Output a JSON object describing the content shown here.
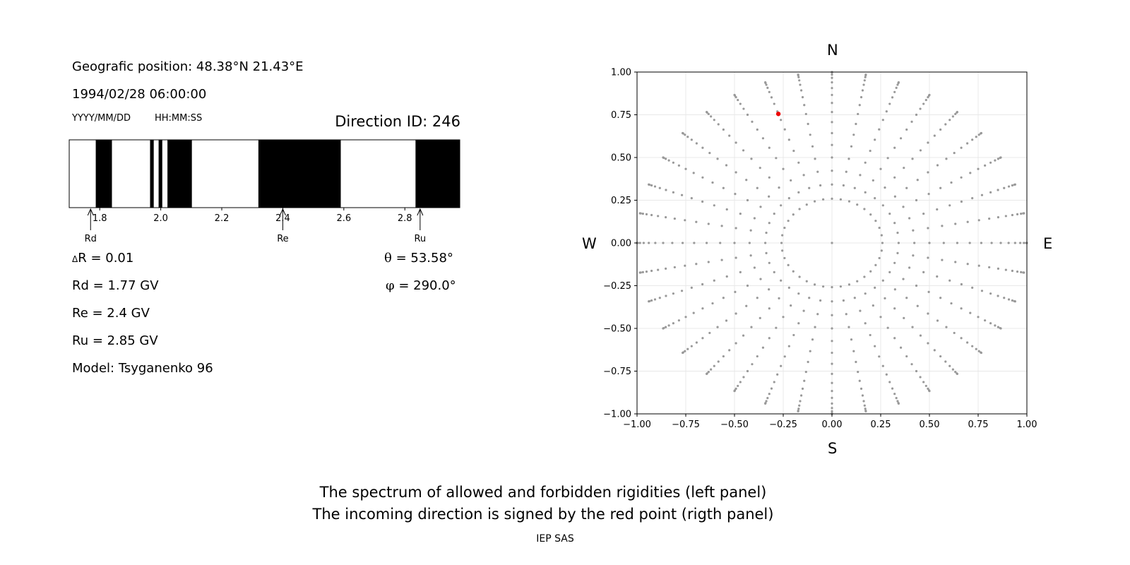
{
  "left_panel": {
    "geo_position": "Geografic position: 48.38°N 21.43°E",
    "datetime": "1994/02/28 06:00:00",
    "date_format_label": "YYYY/MM/DD",
    "time_format_label": "HH:MM:SS",
    "direction_id": "Direction ID: 246",
    "delta_r_symbol": "Δ",
    "delta_r": "R = 0.01",
    "rd": "Rd = 1.77 GV",
    "re": "Re = 2.4 GV",
    "ru": "Ru = 2.85 GV",
    "model": "Model: Tsyganenko 96",
    "theta_symbol": "θ",
    "theta": " = 53.58°",
    "phi_symbol": "φ",
    "phi": " = 290.0°"
  },
  "right_panel": {
    "north": "N",
    "south": "S",
    "west": "W",
    "east": "E"
  },
  "footer": {
    "caption_line1": "The spectrum of allowed and forbidden rigidities (left panel)",
    "caption_line2": "The incoming direction is signed by the red point (rigth panel)",
    "credit": "IEP SAS"
  },
  "colors": {
    "forbidden": "#000000",
    "allowed": "#ffffff",
    "grid_points": "#999999",
    "direction_point": "#ee0000",
    "gridline": "#e8e8e8"
  },
  "chart_data": [
    {
      "type": "bar",
      "name": "rigidity spectrum",
      "xlim": [
        1.7,
        2.98
      ],
      "x_ticks": [
        1.8,
        2.0,
        2.2,
        2.4,
        2.6,
        2.8
      ],
      "x_tick_labels": [
        "1.8",
        "2.0",
        "2.2",
        "2.4",
        "2.6",
        "2.8"
      ],
      "forbidden_intervals": [
        [
          1.787,
          1.84
        ],
        [
          1.965,
          1.977
        ],
        [
          1.993,
          2.005
        ],
        [
          2.022,
          2.102
        ],
        [
          2.32,
          2.59
        ],
        [
          2.835,
          2.98
        ]
      ],
      "markers": [
        {
          "label": "Rd",
          "value": 1.77
        },
        {
          "label": "Re",
          "value": 2.4
        },
        {
          "label": "Ru",
          "value": 2.85
        }
      ]
    },
    {
      "type": "scatter",
      "name": "incoming directions",
      "xlim": [
        -1.0,
        1.0
      ],
      "ylim": [
        -1.0,
        1.0
      ],
      "x_ticks": [
        -1.0,
        -0.75,
        -0.5,
        -0.25,
        0.0,
        0.25,
        0.5,
        0.75,
        1.0
      ],
      "x_tick_labels": [
        "−1.00",
        "−0.75",
        "−0.50",
        "−0.25",
        "0.00",
        "0.25",
        "0.50",
        "0.75",
        "1.00"
      ],
      "y_ticks": [
        1.0,
        0.75,
        0.5,
        0.25,
        0.0,
        -0.25,
        -0.5,
        -0.75,
        -1.0
      ],
      "y_tick_labels": [
        "1.00",
        "0.75",
        "0.50",
        "0.25",
        "0.00",
        "−0.25",
        "−0.50",
        "−0.75",
        "−1.00"
      ],
      "grid": true,
      "zenith_step_deg": 5,
      "zenith_max_deg": 90,
      "inner_ring_zenith_deg": 15,
      "azimuth_step_deg": 10,
      "highlight_point": {
        "x": -0.275,
        "y": 0.755
      }
    }
  ]
}
